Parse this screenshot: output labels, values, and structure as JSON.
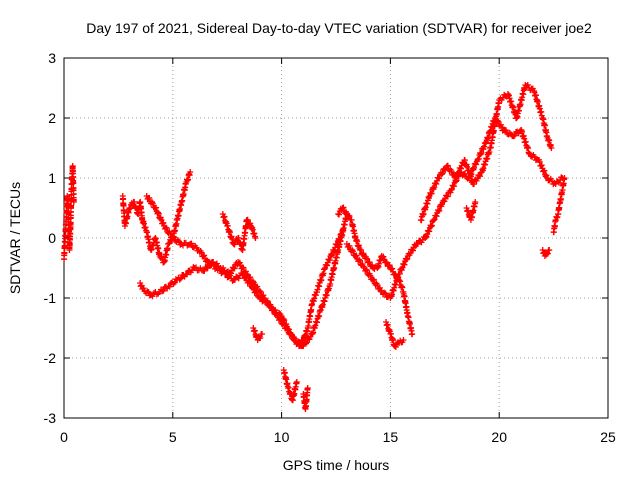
{
  "chart_data": {
    "type": "scatter",
    "title": "Day 197 of 2021, Sidereal Day-to-day VTEC variation (SDTVAR) for receiver joe2",
    "xlabel": "GPS time / hours",
    "ylabel": "SDTVAR / TECUs",
    "xlim": [
      0,
      25
    ],
    "ylim": [
      -3,
      3
    ],
    "xticks": [
      "0",
      "5",
      "10",
      "15",
      "20",
      "25"
    ],
    "yticks": [
      "-3",
      "-2",
      "-1",
      "0",
      "1",
      "2",
      "3"
    ],
    "grid": true,
    "marker": "plus",
    "series": [
      {
        "name": "SDTVAR",
        "color": "#ff0000",
        "traces": [
          {
            "x": [
              0.0,
              0.1,
              0.15,
              0.2,
              0.25,
              0.3,
              0.35,
              0.4,
              0.45
            ],
            "y": [
              -0.35,
              0.3,
              0.7,
              0.5,
              -0.2,
              0.2,
              0.9,
              1.2,
              0.6
            ]
          },
          {
            "x": [
              2.7,
              2.8,
              3.0,
              3.2,
              3.4,
              3.5,
              3.6,
              3.8,
              4.0,
              4.2,
              4.4,
              4.6,
              4.8,
              5.0,
              5.2,
              5.4,
              5.6,
              5.8
            ],
            "y": [
              0.7,
              0.2,
              0.5,
              0.6,
              0.4,
              0.6,
              0.3,
              0.1,
              -0.2,
              0.0,
              -0.3,
              -0.4,
              -0.1,
              0.0,
              0.3,
              0.6,
              0.9,
              1.1
            ]
          },
          {
            "x": [
              3.5,
              3.6,
              4.0,
              4.4,
              4.8,
              5.2,
              5.6,
              6.0,
              6.4,
              6.8,
              7.2,
              7.6,
              8.0,
              8.4,
              8.8,
              9.2,
              9.6,
              10.0,
              10.4,
              10.8,
              11.0,
              11.2,
              11.4,
              11.6,
              12.0,
              12.4,
              12.8
            ],
            "y": [
              -0.75,
              -0.85,
              -0.95,
              -0.9,
              -0.8,
              -0.7,
              -0.6,
              -0.5,
              -0.55,
              -0.4,
              -0.5,
              -0.6,
              -0.4,
              -0.6,
              -0.8,
              -1.0,
              -1.2,
              -1.3,
              -1.6,
              -1.8,
              -1.7,
              -1.5,
              -1.1,
              -0.9,
              -0.5,
              -0.2,
              0.1
            ]
          },
          {
            "x": [
              3.8,
              4.2,
              4.6,
              5.0,
              5.4,
              5.8,
              6.2,
              6.6,
              7.0,
              7.4,
              7.8,
              8.2,
              8.6,
              9.0,
              9.4,
              9.8,
              10.2,
              10.6,
              11.0,
              11.4,
              11.8,
              12.2,
              12.6,
              13.0
            ],
            "y": [
              0.7,
              0.5,
              0.2,
              0.0,
              -0.1,
              -0.1,
              -0.2,
              -0.4,
              -0.5,
              -0.6,
              -0.7,
              -0.6,
              -0.8,
              -1.0,
              -1.1,
              -1.3,
              -1.5,
              -1.7,
              -1.8,
              -1.6,
              -1.2,
              -0.8,
              -0.2,
              0.4
            ]
          },
          {
            "x": [
              7.3,
              7.5,
              7.8,
              8.0,
              8.2,
              8.4,
              8.6,
              8.8
            ],
            "y": [
              0.4,
              0.2,
              -0.1,
              0.0,
              -0.2,
              0.3,
              0.2,
              0.0
            ]
          },
          {
            "x": [
              8.7,
              8.9,
              9.1
            ],
            "y": [
              -1.5,
              -1.7,
              -1.6
            ]
          },
          {
            "x": [
              10.1,
              10.3,
              10.5,
              10.7
            ],
            "y": [
              -2.2,
              -2.5,
              -2.7,
              -2.4
            ]
          },
          {
            "x": [
              11.0,
              11.1,
              11.2
            ],
            "y": [
              -2.6,
              -2.85,
              -2.5
            ]
          },
          {
            "x": [
              12.6,
              12.8,
              13.0,
              13.2,
              13.4,
              13.6,
              13.8,
              14.0,
              14.2,
              14.4,
              14.6,
              14.8,
              15.0,
              15.2,
              15.4,
              15.6,
              15.8,
              16.0
            ],
            "y": [
              0.4,
              0.5,
              0.4,
              0.3,
              0.0,
              -0.2,
              -0.3,
              -0.4,
              -0.5,
              -0.5,
              -0.3,
              -0.4,
              -0.5,
              -0.6,
              -0.7,
              -0.9,
              -1.3,
              -1.6
            ]
          },
          {
            "x": [
              13.0,
              13.4,
              13.8,
              14.2,
              14.6,
              15.0,
              15.4,
              15.8,
              16.2,
              16.6,
              17.0,
              17.4,
              17.8,
              18.2,
              18.6,
              19.0,
              19.4,
              19.8,
              20.2,
              20.6,
              21.0,
              21.4,
              21.8,
              22.2,
              22.6,
              22.9
            ],
            "y": [
              -0.1,
              -0.3,
              -0.5,
              -0.7,
              -0.9,
              -1.0,
              -0.6,
              -0.3,
              -0.1,
              0.0,
              0.3,
              0.6,
              0.8,
              1.1,
              1.0,
              1.3,
              1.6,
              2.0,
              1.8,
              1.7,
              1.8,
              1.4,
              1.3,
              1.0,
              0.9,
              1.0
            ]
          },
          {
            "x": [
              14.8,
              15.0,
              15.2,
              15.4,
              15.6
            ],
            "y": [
              -1.4,
              -1.6,
              -1.8,
              -1.75,
              -1.7
            ]
          },
          {
            "x": [
              16.4,
              16.8,
              17.2,
              17.6,
              18.0,
              18.4,
              18.8,
              19.2,
              19.6,
              20.0,
              20.4,
              20.8,
              21.2,
              21.6,
              22.0,
              22.2,
              22.4
            ],
            "y": [
              0.3,
              0.7,
              1.0,
              1.2,
              1.0,
              1.3,
              0.9,
              1.1,
              1.5,
              2.3,
              2.4,
              2.0,
              2.55,
              2.45,
              2.0,
              1.7,
              1.5
            ]
          },
          {
            "x": [
              18.5,
              18.7,
              18.9
            ],
            "y": [
              0.5,
              0.3,
              0.6
            ]
          },
          {
            "x": [
              22.0,
              22.1,
              22.2,
              22.3
            ],
            "y": [
              -0.2,
              -0.3,
              -0.25,
              -0.2
            ]
          },
          {
            "x": [
              22.5,
              22.6,
              22.7,
              22.8,
              22.9,
              23.0
            ],
            "y": [
              0.1,
              0.3,
              0.4,
              0.6,
              0.8,
              1.0
            ]
          }
        ]
      }
    ]
  }
}
